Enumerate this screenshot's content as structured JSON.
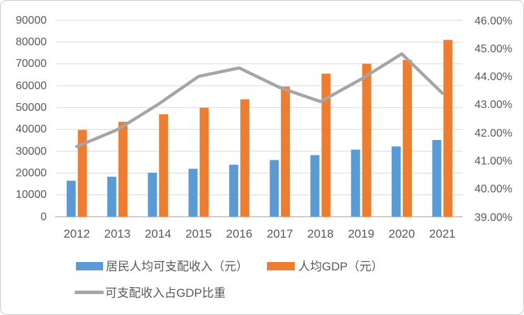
{
  "chart_data": {
    "type": "bar",
    "subtype": "combo-bar-line",
    "title": "",
    "categories": [
      "2012",
      "2013",
      "2014",
      "2015",
      "2016",
      "2017",
      "2018",
      "2019",
      "2020",
      "2021"
    ],
    "series": [
      {
        "name": "居民人均可支配收入（元）",
        "type": "bar",
        "axis": "left",
        "color": "#5b9bd5",
        "values": [
          16510,
          18311,
          20167,
          21966,
          23821,
          25974,
          28228,
          30733,
          32189,
          35128
        ]
      },
      {
        "name": "人均GDP（元）",
        "type": "bar",
        "axis": "left",
        "color": "#ed7d31",
        "values": [
          39771,
          43497,
          46912,
          49922,
          53783,
          59592,
          65534,
          70078,
          71828,
          80976
        ]
      },
      {
        "name": "可支配收入占GDP比重",
        "type": "line",
        "axis": "right",
        "color": "#a5a5a5",
        "values": [
          41.5,
          42.1,
          43.0,
          44.0,
          44.3,
          43.6,
          43.1,
          43.9,
          44.8,
          43.4
        ]
      }
    ],
    "left_axis": {
      "min": 0,
      "max": 90000,
      "step": 10000,
      "tick_labels": [
        "0",
        "10000",
        "20000",
        "30000",
        "40000",
        "50000",
        "60000",
        "70000",
        "80000",
        "90000"
      ]
    },
    "right_axis": {
      "min": 39,
      "max": 46,
      "step": 1,
      "tick_labels": [
        "39.00%",
        "40.00%",
        "41.00%",
        "42.00%",
        "43.00%",
        "44.00%",
        "45.00%",
        "46.00%"
      ]
    },
    "grid": "on",
    "legend_position": "bottom",
    "gridline_color": "#d9d9d9",
    "axisline_color": "#cfcfcf"
  }
}
